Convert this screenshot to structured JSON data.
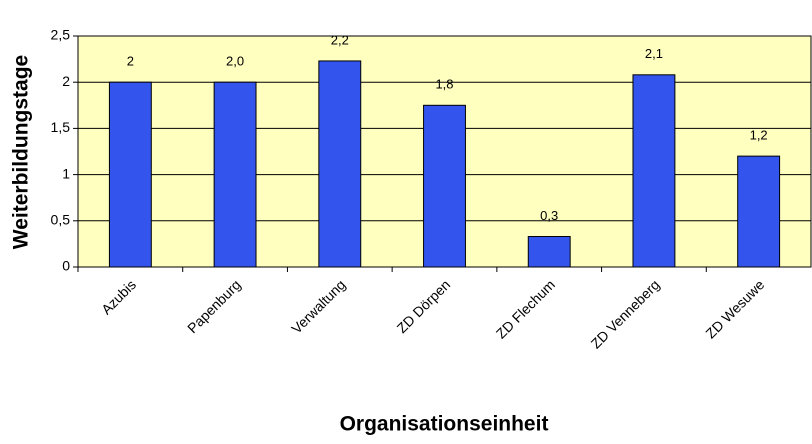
{
  "chart_data": {
    "type": "bar",
    "x_label": "Organisationseinheit",
    "y_label": "Weiterbildungstage",
    "categories": [
      "Azubis",
      "Papenburg",
      "Verwaltung",
      "ZD Dörpen",
      "ZD Flechum",
      "ZD Venneberg",
      "ZD Wesuwe"
    ],
    "values": [
      2.0,
      2.0,
      2.23,
      1.75,
      0.33,
      2.08,
      1.2
    ],
    "value_labels": [
      "2",
      "2,0",
      "2,2",
      "1,8",
      "0,3",
      "2,1",
      "1,2"
    ],
    "color": "#3355ee",
    "plot_background": "#ffffc0",
    "ylim": [
      0,
      2.5
    ],
    "yticks": [
      0,
      {
        "value": 0.5,
        "label": "0,5"
      },
      1,
      {
        "value": 1.5,
        "label": "1,5"
      },
      2,
      {
        "value": 2.5,
        "label": "2,5"
      }
    ],
    "grid": true
  }
}
